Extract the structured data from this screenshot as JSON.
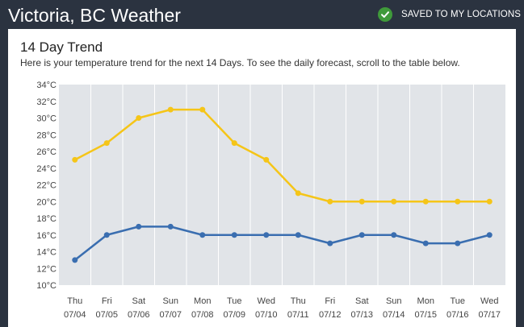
{
  "header": {
    "title": "Victoria, BC Weather",
    "saved_label": "SAVED TO MY LOCATIONS",
    "saved_icon": "check-circle-icon",
    "saved_icon_color": "#3f9a3a"
  },
  "trend": {
    "title": "14 Day Trend",
    "description": "Here is your temperature trend for the next 14 Days. To see the daily forecast, scroll to the table below."
  },
  "chart_data": {
    "type": "line",
    "title": "",
    "xlabel": "",
    "ylabel": "",
    "ylim": [
      10,
      34
    ],
    "y_ticks": [
      "34°C",
      "32°C",
      "30°C",
      "28°C",
      "26°C",
      "24°C",
      "22°C",
      "20°C",
      "18°C",
      "16°C",
      "14°C",
      "12°C",
      "10°C"
    ],
    "y_tick_values": [
      34,
      32,
      30,
      28,
      26,
      24,
      22,
      20,
      18,
      16,
      14,
      12,
      10
    ],
    "days": [
      "Thu",
      "Fri",
      "Sat",
      "Sun",
      "Mon",
      "Tue",
      "Wed",
      "Thu",
      "Fri",
      "Sat",
      "Sun",
      "Mon",
      "Tue",
      "Wed"
    ],
    "dates": [
      "07/04",
      "07/05",
      "07/06",
      "07/07",
      "07/08",
      "07/09",
      "07/10",
      "07/11",
      "07/12",
      "07/13",
      "07/14",
      "07/15",
      "07/16",
      "07/17"
    ],
    "grid": true,
    "legend": "none",
    "series": [
      {
        "color": "#f5c518",
        "values": [
          25,
          27,
          30,
          31,
          31,
          27,
          25,
          21,
          20,
          20,
          20,
          20,
          20,
          20
        ]
      },
      {
        "color": "#3a6eb0",
        "values": [
          13,
          16,
          17,
          17,
          16,
          16,
          16,
          16,
          15,
          16,
          16,
          15,
          15,
          16
        ]
      }
    ]
  }
}
